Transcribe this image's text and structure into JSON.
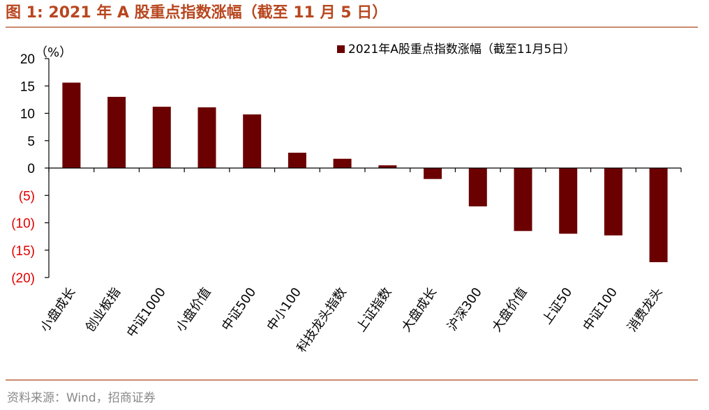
{
  "header": {
    "title": "图 1:  2021 年 A 股重点指数涨幅（截至 11 月 5 日）"
  },
  "footer": {
    "source": "资料来源：Wind，招商证券"
  },
  "colors": {
    "bar": "#6b0000",
    "negative_tick": "#e00000",
    "accent": "#b8471f"
  },
  "chart_data": {
    "type": "bar",
    "title": "2021年A股重点指数涨幅（截至11月5日）",
    "ylabel": "（%）",
    "xlabel": "",
    "ylim": [
      -20,
      20
    ],
    "yticks": [
      20,
      15,
      10,
      5,
      0,
      -5,
      -10,
      -15,
      -20
    ],
    "ytick_labels": [
      "20",
      "15",
      "10",
      "5",
      "0",
      "(5)",
      "(10)",
      "(15)",
      "(20)"
    ],
    "legend": "2021年A股重点指数涨幅（截至11月5日）",
    "legend_position": "top-right",
    "grid": false,
    "categories": [
      "小盘成长",
      "创业板指",
      "中证1000",
      "小盘价值",
      "中证500",
      "中小100",
      "科技龙头指数",
      "上证指数",
      "大盘成长",
      "沪深300",
      "大盘价值",
      "上证50",
      "中证100",
      "消费龙头"
    ],
    "values": [
      15.6,
      13.0,
      11.2,
      11.1,
      9.8,
      2.8,
      1.7,
      0.5,
      -2.0,
      -7.0,
      -11.5,
      -12.0,
      -12.3,
      -17.2
    ]
  }
}
